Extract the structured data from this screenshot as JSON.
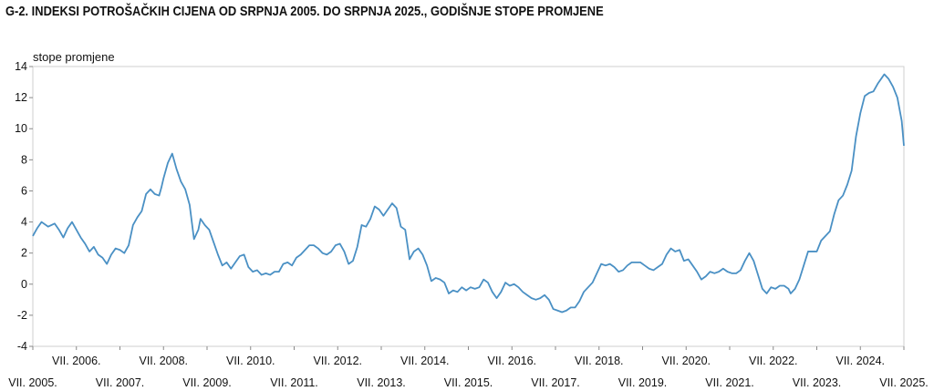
{
  "chart_data": {
    "type": "line",
    "title": "G-2.  INDEKSI POTROŠAČKIH CIJENA OD SRPNJA 2005. DO SRPNJA 2025., GODIŠNJE STOPE PROMJENE",
    "ylabel": "stope promjene",
    "xlabel": "",
    "ylim": [
      -4,
      14
    ],
    "yticks": [
      -4,
      -2,
      0,
      2,
      4,
      6,
      8,
      10,
      12,
      14
    ],
    "xlim": [
      2005.5,
      2025.5
    ],
    "x_tick_labels_lower": [
      {
        "x": 2005.5,
        "label": "VII. 2005."
      },
      {
        "x": 2007.5,
        "label": "VII. 2007."
      },
      {
        "x": 2009.5,
        "label": "VII. 2009."
      },
      {
        "x": 2011.5,
        "label": "VII. 2011."
      },
      {
        "x": 2013.5,
        "label": "VII. 2013."
      },
      {
        "x": 2015.5,
        "label": "VII. 2015."
      },
      {
        "x": 2017.5,
        "label": "VII. 2017."
      },
      {
        "x": 2019.5,
        "label": "VII. 2019."
      },
      {
        "x": 2021.5,
        "label": "VII. 2021."
      },
      {
        "x": 2023.5,
        "label": "VII. 2023."
      },
      {
        "x": 2025.5,
        "label": "VII. 2025."
      }
    ],
    "x_tick_labels_upper": [
      {
        "x": 2006.5,
        "label": "VII. 2006."
      },
      {
        "x": 2008.5,
        "label": "VII. 2008."
      },
      {
        "x": 2010.5,
        "label": "VII. 2010."
      },
      {
        "x": 2012.5,
        "label": "VII. 2012."
      },
      {
        "x": 2014.5,
        "label": "VII. 2014."
      },
      {
        "x": 2016.5,
        "label": "VII. 2016."
      },
      {
        "x": 2018.5,
        "label": "VII. 2018."
      },
      {
        "x": 2020.5,
        "label": "VII. 2020."
      },
      {
        "x": 2022.5,
        "label": "VII. 2022."
      },
      {
        "x": 2024.5,
        "label": "VII. 2024."
      }
    ],
    "grid": false,
    "series": [
      {
        "color": "#4a90c4",
        "points": [
          [
            2005.5,
            3.1
          ],
          [
            2005.6,
            3.6
          ],
          [
            2005.7,
            4.0
          ],
          [
            2005.85,
            3.7
          ],
          [
            2006.0,
            3.9
          ],
          [
            2006.1,
            3.5
          ],
          [
            2006.2,
            3.0
          ],
          [
            2006.3,
            3.6
          ],
          [
            2006.4,
            4.0
          ],
          [
            2006.5,
            3.5
          ],
          [
            2006.6,
            3.0
          ],
          [
            2006.7,
            2.6
          ],
          [
            2006.8,
            2.1
          ],
          [
            2006.9,
            2.4
          ],
          [
            2007.0,
            1.9
          ],
          [
            2007.1,
            1.7
          ],
          [
            2007.2,
            1.3
          ],
          [
            2007.3,
            1.9
          ],
          [
            2007.4,
            2.3
          ],
          [
            2007.5,
            2.2
          ],
          [
            2007.6,
            2.0
          ],
          [
            2007.7,
            2.5
          ],
          [
            2007.8,
            3.8
          ],
          [
            2007.9,
            4.3
          ],
          [
            2008.0,
            4.7
          ],
          [
            2008.1,
            5.8
          ],
          [
            2008.2,
            6.1
          ],
          [
            2008.3,
            5.8
          ],
          [
            2008.4,
            5.7
          ],
          [
            2008.45,
            6.2
          ],
          [
            2008.5,
            6.8
          ],
          [
            2008.6,
            7.8
          ],
          [
            2008.7,
            8.4
          ],
          [
            2008.8,
            7.4
          ],
          [
            2008.9,
            6.6
          ],
          [
            2009.0,
            6.1
          ],
          [
            2009.1,
            5.1
          ],
          [
            2009.2,
            2.9
          ],
          [
            2009.3,
            3.5
          ],
          [
            2009.35,
            4.2
          ],
          [
            2009.45,
            3.8
          ],
          [
            2009.55,
            3.5
          ],
          [
            2009.65,
            2.7
          ],
          [
            2009.75,
            1.9
          ],
          [
            2009.85,
            1.2
          ],
          [
            2009.95,
            1.4
          ],
          [
            2010.05,
            1.0
          ],
          [
            2010.15,
            1.4
          ],
          [
            2010.25,
            1.8
          ],
          [
            2010.35,
            1.9
          ],
          [
            2010.45,
            1.1
          ],
          [
            2010.55,
            0.8
          ],
          [
            2010.65,
            0.9
          ],
          [
            2010.75,
            0.6
          ],
          [
            2010.85,
            0.7
          ],
          [
            2010.95,
            0.6
          ],
          [
            2011.05,
            0.8
          ],
          [
            2011.15,
            0.8
          ],
          [
            2011.25,
            1.3
          ],
          [
            2011.35,
            1.4
          ],
          [
            2011.45,
            1.2
          ],
          [
            2011.55,
            1.7
          ],
          [
            2011.65,
            1.9
          ],
          [
            2011.75,
            2.2
          ],
          [
            2011.85,
            2.5
          ],
          [
            2011.95,
            2.5
          ],
          [
            2012.05,
            2.3
          ],
          [
            2012.15,
            2.0
          ],
          [
            2012.25,
            1.9
          ],
          [
            2012.35,
            2.1
          ],
          [
            2012.45,
            2.5
          ],
          [
            2012.55,
            2.6
          ],
          [
            2012.65,
            2.1
          ],
          [
            2012.75,
            1.3
          ],
          [
            2012.85,
            1.5
          ],
          [
            2012.95,
            2.4
          ],
          [
            2013.05,
            3.8
          ],
          [
            2013.15,
            3.7
          ],
          [
            2013.25,
            4.2
          ],
          [
            2013.35,
            5.0
          ],
          [
            2013.45,
            4.8
          ],
          [
            2013.55,
            4.4
          ],
          [
            2013.65,
            4.8
          ],
          [
            2013.75,
            5.2
          ],
          [
            2013.85,
            4.9
          ],
          [
            2013.95,
            3.7
          ],
          [
            2014.05,
            3.5
          ],
          [
            2014.15,
            1.6
          ],
          [
            2014.25,
            2.1
          ],
          [
            2014.35,
            2.3
          ],
          [
            2014.45,
            1.9
          ],
          [
            2014.55,
            1.2
          ],
          [
            2014.65,
            0.2
          ],
          [
            2014.75,
            0.4
          ],
          [
            2014.85,
            0.3
          ],
          [
            2014.95,
            0.1
          ],
          [
            2015.05,
            -0.6
          ],
          [
            2015.15,
            -0.4
          ],
          [
            2015.25,
            -0.5
          ],
          [
            2015.35,
            -0.2
          ],
          [
            2015.45,
            -0.4
          ],
          [
            2015.55,
            -0.2
          ],
          [
            2015.65,
            -0.3
          ],
          [
            2015.75,
            -0.2
          ],
          [
            2015.85,
            0.3
          ],
          [
            2015.95,
            0.1
          ],
          [
            2016.05,
            -0.5
          ],
          [
            2016.15,
            -0.9
          ],
          [
            2016.25,
            -0.5
          ],
          [
            2016.35,
            0.1
          ],
          [
            2016.45,
            -0.1
          ],
          [
            2016.55,
            0.0
          ],
          [
            2016.65,
            -0.2
          ],
          [
            2016.75,
            -0.5
          ],
          [
            2016.85,
            -0.7
          ],
          [
            2016.95,
            -0.9
          ],
          [
            2017.05,
            -1.0
          ],
          [
            2017.15,
            -0.9
          ],
          [
            2017.25,
            -0.7
          ],
          [
            2017.35,
            -1.0
          ],
          [
            2017.45,
            -1.6
          ],
          [
            2017.55,
            -1.7
          ],
          [
            2017.65,
            -1.8
          ],
          [
            2017.75,
            -1.7
          ],
          [
            2017.85,
            -1.5
          ],
          [
            2017.95,
            -1.5
          ],
          [
            2018.05,
            -1.1
          ],
          [
            2018.15,
            -0.5
          ],
          [
            2018.25,
            -0.2
          ],
          [
            2018.35,
            0.1
          ],
          [
            2018.45,
            0.7
          ],
          [
            2018.55,
            1.3
          ],
          [
            2018.65,
            1.2
          ],
          [
            2018.75,
            1.3
          ],
          [
            2018.85,
            1.1
          ],
          [
            2018.95,
            0.8
          ],
          [
            2019.05,
            0.9
          ],
          [
            2019.15,
            1.2
          ],
          [
            2019.25,
            1.4
          ],
          [
            2019.35,
            1.4
          ],
          [
            2019.45,
            1.4
          ],
          [
            2019.55,
            1.2
          ],
          [
            2019.65,
            1.0
          ],
          [
            2019.75,
            0.9
          ],
          [
            2019.85,
            1.1
          ],
          [
            2019.95,
            1.3
          ],
          [
            2020.05,
            1.9
          ],
          [
            2020.15,
            2.3
          ],
          [
            2020.25,
            2.1
          ],
          [
            2020.35,
            2.2
          ],
          [
            2020.45,
            1.5
          ],
          [
            2020.55,
            1.6
          ],
          [
            2020.65,
            1.2
          ],
          [
            2020.75,
            0.8
          ],
          [
            2020.85,
            0.3
          ],
          [
            2020.95,
            0.5
          ],
          [
            2021.05,
            0.8
          ],
          [
            2021.15,
            0.7
          ],
          [
            2021.25,
            0.8
          ],
          [
            2021.35,
            1.0
          ],
          [
            2021.45,
            0.8
          ],
          [
            2021.55,
            0.7
          ],
          [
            2021.65,
            0.7
          ],
          [
            2021.75,
            0.9
          ],
          [
            2021.85,
            1.5
          ],
          [
            2021.95,
            2.0
          ],
          [
            2022.05,
            1.5
          ],
          [
            2022.15,
            0.6
          ],
          [
            2022.25,
            -0.3
          ],
          [
            2022.35,
            -0.6
          ],
          [
            2022.45,
            -0.2
          ],
          [
            2022.55,
            -0.3
          ],
          [
            2022.65,
            -0.1
          ],
          [
            2022.75,
            -0.1
          ],
          [
            2022.85,
            -0.3
          ],
          [
            2022.9,
            -0.6
          ],
          [
            2023.0,
            -0.3
          ],
          [
            2023.1,
            0.3
          ],
          [
            2023.2,
            1.2
          ],
          [
            2023.3,
            2.1
          ],
          [
            2023.4,
            2.1
          ],
          [
            2023.5,
            2.1
          ],
          [
            2023.6,
            2.8
          ],
          [
            2023.7,
            3.1
          ],
          [
            2023.8,
            3.4
          ],
          [
            2023.9,
            4.5
          ],
          [
            2024.0,
            5.4
          ],
          [
            2024.1,
            5.7
          ],
          [
            2024.2,
            6.4
          ],
          [
            2024.3,
            7.3
          ],
          [
            2024.4,
            9.5
          ],
          [
            2024.5,
            11.0
          ],
          [
            2024.6,
            12.1
          ],
          [
            2024.7,
            12.3
          ],
          [
            2024.8,
            12.4
          ],
          [
            2024.9,
            12.9
          ],
          [
            2025.0,
            13.3
          ],
          [
            2025.05,
            13.5
          ],
          [
            2025.15,
            13.2
          ],
          [
            2025.25,
            12.7
          ],
          [
            2025.35,
            12.0
          ],
          [
            2025.45,
            10.5
          ],
          [
            2025.5,
            8.9
          ]
        ]
      }
    ]
  }
}
